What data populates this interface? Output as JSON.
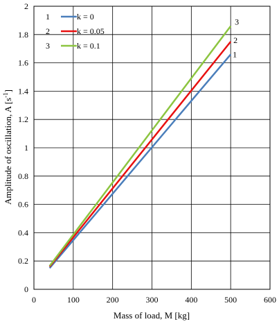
{
  "chart_data": {
    "type": "line",
    "xlabel": "Mass of load, M [kg]",
    "ylabel": "Amplitude of oscillation, A [s",
    "ylabel_sup": "-1",
    "ylabel_close": "]",
    "xlim": [
      0,
      600
    ],
    "ylim": [
      0,
      2
    ],
    "xticks": [
      0,
      100,
      200,
      300,
      400,
      500,
      600
    ],
    "yticks": [
      0,
      0.2,
      0.4,
      0.6,
      0.8,
      1,
      1.2,
      1.4,
      1.6,
      1.8,
      2
    ],
    "xtick_labels": [
      "0",
      "100",
      "200",
      "300",
      "400",
      "500",
      "600"
    ],
    "ytick_labels": [
      "0",
      "0.2",
      "0.4",
      "0.6",
      "0.8",
      "1",
      "1.2",
      "1.4",
      "1.6",
      "1.8",
      "2"
    ],
    "grid": true,
    "legend_position": "top-left",
    "series": [
      {
        "name": "k = 0",
        "number": "1",
        "color": "#4a7ebb",
        "x": [
          40,
          500
        ],
        "y": [
          0.15,
          1.66
        ]
      },
      {
        "name": "k = 0.05",
        "number": "2",
        "color": "#e81010",
        "x": [
          40,
          500
        ],
        "y": [
          0.16,
          1.75
        ]
      },
      {
        "name": "k = 0.1",
        "number": "3",
        "color": "#8cc540",
        "x": [
          40,
          500
        ],
        "y": [
          0.165,
          1.86
        ]
      }
    ]
  }
}
